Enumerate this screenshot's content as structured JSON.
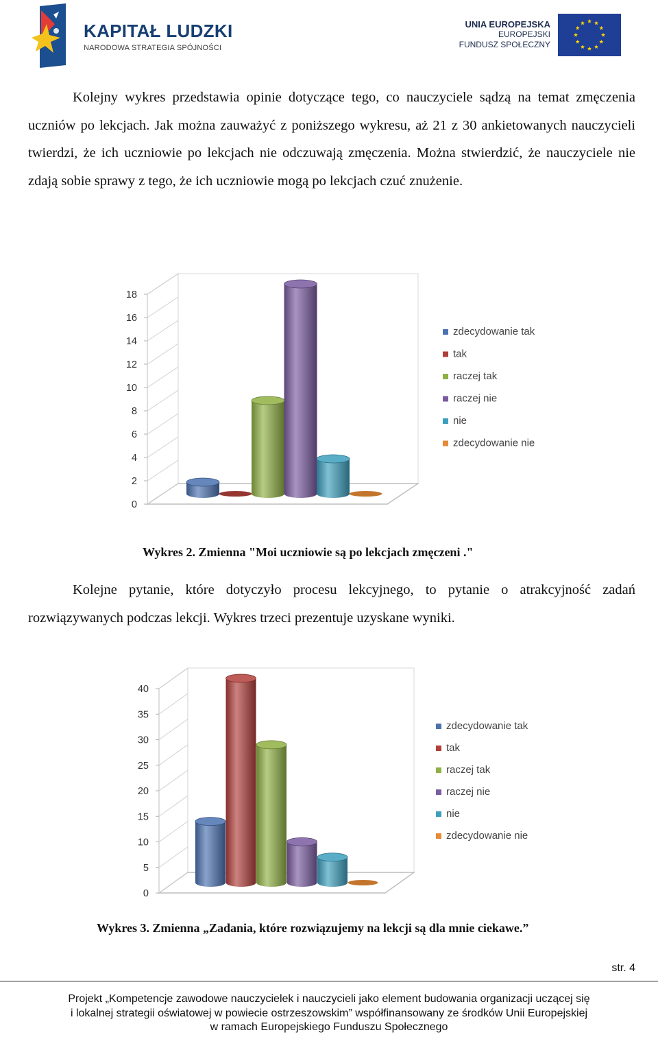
{
  "header": {
    "left_logo": {
      "title": "KAPITAŁ LUDZKI",
      "subtitle": "NARODOWA STRATEGIA SPÓJNOŚCI"
    },
    "right_logo": {
      "line1": "UNIA EUROPEJSKA",
      "line2": "EUROPEJSKI",
      "line3": "FUNDUSZ SPOŁECZNY"
    }
  },
  "paragraphs": {
    "p1": "Kolejny wykres przedstawia opinie dotyczące tego, co nauczyciele sądzą na temat zmęczenia uczniów po lekcjach. Jak można zauważyć z poniższego wykresu, aż 21 z 30 ankietowanych nauczycieli twierdzi, że ich uczniowie po lekcjach nie odczuwają zmęczenia. Można stwierdzić, że nauczyciele nie zdają sobie sprawy z tego, że ich uczniowie mogą po lekcjach czuć znużenie.",
    "p2": "Kolejne pytanie, które dotyczyło procesu lekcyjnego, to pytanie o atrakcyjność zadań rozwiązywanych podczas lekcji. Wykres trzeci prezentuje uzyskane wyniki."
  },
  "captions": {
    "c1": "Wykres 2. Zmienna \"Moi uczniowie są po lekcjach zmęczeni .\"",
    "c2": "Wykres 3. Zmienna „Zadania, które rozwiązujemy na lekcji są dla mnie ciekawe.”"
  },
  "chart_data": [
    {
      "type": "bar",
      "style": "3d-cylinder",
      "categories": [
        "zdecydowanie tak",
        "tak",
        "raczej tak",
        "raczej nie",
        "nie",
        "zdecydowanie nie"
      ],
      "values": [
        1,
        0,
        8,
        18,
        3,
        0
      ],
      "colors": [
        "#4a72b0",
        "#b13f3a",
        "#8fb043",
        "#7a5ca0",
        "#3d9fbd",
        "#e58a35"
      ],
      "ylim": [
        0,
        18
      ],
      "yticks": [
        "0",
        "2",
        "4",
        "6",
        "8",
        "10",
        "12",
        "14",
        "16",
        "18"
      ],
      "legend": "right",
      "grid": false
    },
    {
      "type": "bar",
      "style": "3d-cylinder",
      "categories": [
        "zdecydowanie tak",
        "tak",
        "raczej tak",
        "raczej nie",
        "nie",
        "zdecydowanie nie"
      ],
      "values": [
        12,
        40,
        27,
        8,
        5,
        0
      ],
      "colors": [
        "#4a72b0",
        "#b13f3a",
        "#8fb043",
        "#7a5ca0",
        "#3d9fbd",
        "#e58a35"
      ],
      "ylim": [
        0,
        40
      ],
      "yticks": [
        "0",
        "5",
        "10",
        "15",
        "20",
        "25",
        "30",
        "35",
        "40"
      ],
      "legend": "right",
      "grid": false
    }
  ],
  "footer": {
    "page_number": "str. 4",
    "line1": "Projekt „Kompetencje zawodowe nauczycielek i nauczycieli jako element budowania organizacji uczącej się",
    "line2": "i lokalnej strategii oświatowej w powiecie ostrzeszowskim” współfinansowany ze środków Unii Europejskiej",
    "line3": "w ramach Europejskiego Funduszu Społecznego"
  }
}
